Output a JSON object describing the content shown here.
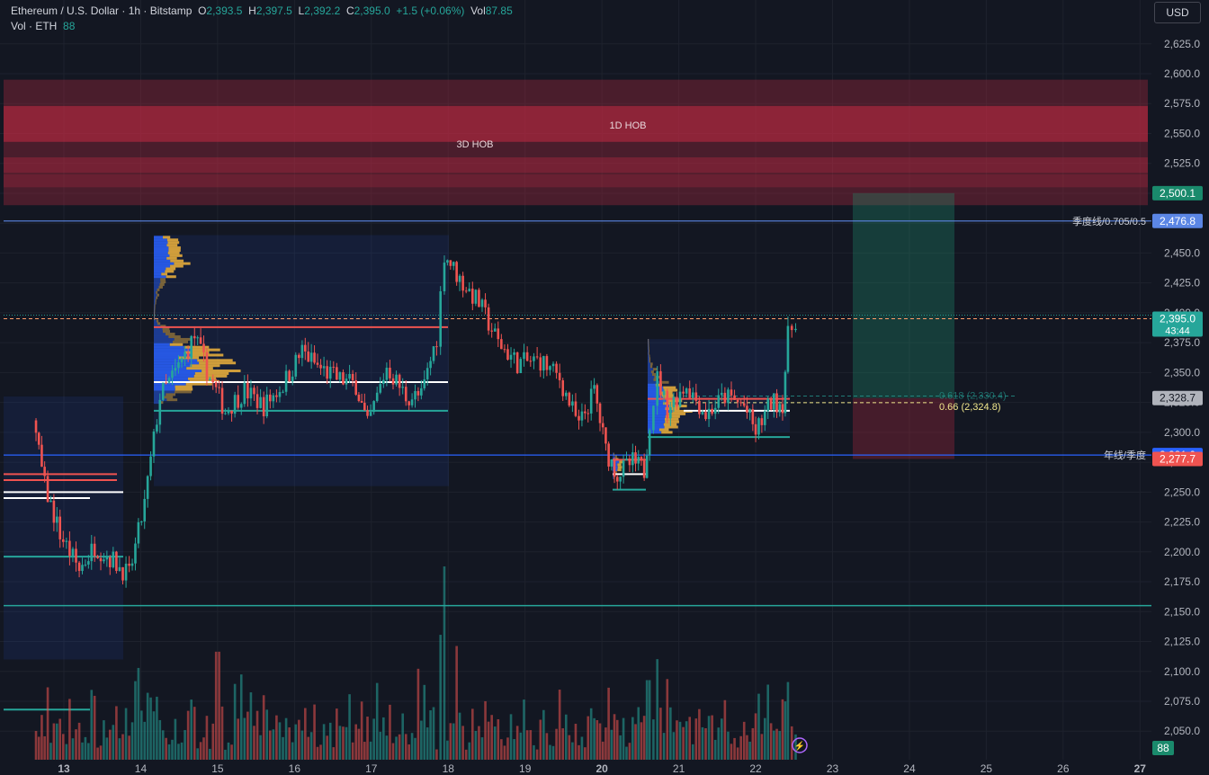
{
  "header": {
    "symbol": "Ethereum / U.S. Dollar · 1h · Bitstamp",
    "open_label": "O",
    "open": "2,393.5",
    "high_label": "H",
    "high": "2,397.5",
    "low_label": "L",
    "low": "2,392.2",
    "close_label": "C",
    "close": "2,395.0",
    "change": "+1.5 (+0.06%)",
    "vol_label": "Vol",
    "vol": "87.85",
    "vol_series": "Vol · ETH",
    "vol_series_value": "88"
  },
  "currency_button": "USD",
  "colors": {
    "background": "#131722",
    "up": "#26a69a",
    "down": "#ef5350",
    "hob_zone": "#b2283f",
    "profile_value_area": "#2962ff",
    "profile_outer": "#f0b43c"
  },
  "chart_data": {
    "type": "candlestick",
    "title": "Ethereum / U.S. Dollar · 1h · Bitstamp",
    "x_ticks": [
      "13",
      "14",
      "15",
      "16",
      "17",
      "18",
      "19",
      "20",
      "21",
      "22",
      "23",
      "24",
      "25",
      "26",
      "27"
    ],
    "y_ticks": [
      2050,
      2075,
      2100,
      2125,
      2150,
      2175,
      2200,
      2225,
      2250,
      2275,
      2300,
      2325,
      2350,
      2375,
      2400,
      2425,
      2450,
      2475,
      2500,
      2525,
      2550,
      2575,
      2600,
      2625
    ],
    "ylim": [
      2050,
      2640
    ],
    "price_path": [
      [
        12.6,
        2310
      ],
      [
        12.75,
        2255
      ],
      [
        12.95,
        2215
      ],
      [
        13.2,
        2185
      ],
      [
        13.4,
        2205
      ],
      [
        13.6,
        2195
      ],
      [
        13.85,
        2180
      ],
      [
        14.05,
        2240
      ],
      [
        14.25,
        2330
      ],
      [
        14.45,
        2350
      ],
      [
        14.7,
        2380
      ],
      [
        14.9,
        2345
      ],
      [
        15.1,
        2318
      ],
      [
        15.35,
        2335
      ],
      [
        15.6,
        2322
      ],
      [
        15.85,
        2340
      ],
      [
        16.1,
        2368
      ],
      [
        16.3,
        2355
      ],
      [
        16.55,
        2345
      ],
      [
        16.8,
        2340
      ],
      [
        16.95,
        2305
      ],
      [
        17.2,
        2355
      ],
      [
        17.45,
        2330
      ],
      [
        17.65,
        2330
      ],
      [
        17.85,
        2380
      ],
      [
        17.95,
        2450
      ],
      [
        18.15,
        2428
      ],
      [
        18.4,
        2408
      ],
      [
        18.65,
        2375
      ],
      [
        18.9,
        2358
      ],
      [
        19.2,
        2360
      ],
      [
        19.45,
        2345
      ],
      [
        19.7,
        2305
      ],
      [
        19.9,
        2335
      ],
      [
        20.05,
        2285
      ],
      [
        20.2,
        2265
      ],
      [
        20.4,
        2275
      ],
      [
        20.55,
        2268
      ],
      [
        20.62,
        2310
      ],
      [
        20.72,
        2345
      ],
      [
        20.85,
        2320
      ],
      [
        21.1,
        2340
      ],
      [
        21.35,
        2315
      ],
      [
        21.6,
        2330
      ],
      [
        21.85,
        2322
      ],
      [
        22.0,
        2300
      ],
      [
        22.2,
        2325
      ],
      [
        22.35,
        2325
      ],
      [
        22.42,
        2380
      ],
      [
        22.52,
        2395
      ]
    ],
    "volume_max": 170,
    "volume_spikes": [
      [
        15.0,
        95
      ],
      [
        15.3,
        75
      ],
      [
        17.6,
        80
      ],
      [
        17.95,
        170
      ],
      [
        18.1,
        100
      ],
      [
        20.6,
        70
      ],
      [
        22.55,
        88
      ]
    ],
    "levels": [
      {
        "name": "季度线/0.705/0.5",
        "price": 2476.8,
        "color": "#5b86e5"
      },
      {
        "name": "年线/季度",
        "price": 2281.0,
        "color": "#2962ff"
      },
      {
        "name": "",
        "price": 2155.0,
        "color": "#26a69a"
      }
    ],
    "zones": [
      {
        "label": "3D HOB",
        "from": 2490,
        "to": 2595
      },
      {
        "label": "1D HOB",
        "from": 2543,
        "to": 2573
      }
    ],
    "fib_labels": [
      {
        "label": "0.618 (2,330.4)",
        "price": 2330.4
      },
      {
        "label": "0.66 (2,324.8)",
        "price": 2324.8
      }
    ],
    "price_badges": [
      {
        "text": "2,500.1",
        "price": 2500.1,
        "bg": "#1a8a6c",
        "fg": "#ffffff"
      },
      {
        "text": "2,476.8",
        "price": 2476.8,
        "bg": "#5b86e5",
        "fg": "#ffffff"
      },
      {
        "text": "2,395.0",
        "sub": "43:44",
        "price": 2395.0,
        "bg": "#26a69a",
        "fg": "#ffffff"
      },
      {
        "text": "2,328.7",
        "price": 2328.7,
        "bg": "#b0b3bb",
        "fg": "#131722"
      },
      {
        "text": "2,281.0",
        "price": 2281.0,
        "bg": "#2962ff",
        "fg": "#ffffff"
      },
      {
        "text": "2,277.7",
        "price": 2277.7,
        "bg": "#ef5350",
        "fg": "#ffffff"
      }
    ],
    "volume_badge": "88"
  }
}
